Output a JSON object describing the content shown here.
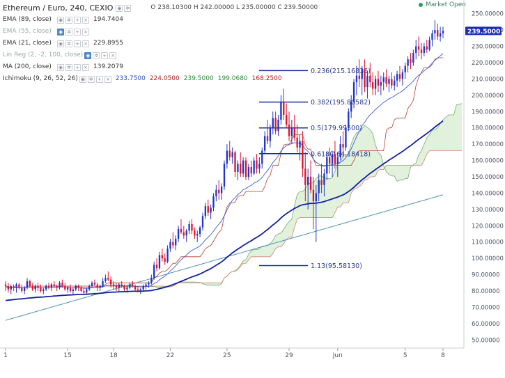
{
  "header": {
    "symbol_title": "Ethereum / Euro, 240, CEXIO",
    "ohlc": "O 238.10300  H 242.00000  L 235.00000  C 239.50000",
    "market_status": "Market Open"
  },
  "indicators": [
    {
      "label": "EMA (89, close)",
      "value": "194.7404",
      "muted": false
    },
    {
      "label": "EMA (55, close)",
      "value": "",
      "muted": true
    },
    {
      "label": "EMA (21, close)",
      "value": "229.8955",
      "muted": false
    },
    {
      "label": "Lin Reg (2, -2, 100, close)",
      "value": "",
      "muted": true
    },
    {
      "label": "MA (200, close)",
      "value": "139.2079",
      "muted": false
    }
  ],
  "ichimoku": {
    "label": "Ichimoku (9, 26, 52, 26)",
    "values": [
      {
        "text": "233.7500",
        "color": "#2b4fc4"
      },
      {
        "text": "224.0500",
        "color": "#b22222"
      },
      {
        "text": "239.5000",
        "color": "#2e8b3d"
      },
      {
        "text": "199.0680",
        "color": "#2e8b3d"
      },
      {
        "text": "168.2500",
        "color": "#b22222"
      }
    ]
  },
  "colors": {
    "up": "#1f35c8",
    "down": "#e0112b",
    "ema89": "#1020a0",
    "ema21": "#3a5ad8",
    "ma200": "#4a90b8",
    "tenkan": "#4660e0",
    "kijun": "#c0392b",
    "cloud_fill": "#dff0d8",
    "span_a": "#6fae6f",
    "span_b": "#d98070",
    "fib": "#1a2f9e",
    "price_tag": "#1a2fb4"
  },
  "price_tag": "239.5000",
  "chart_data": {
    "type": "candlestick",
    "title": "Ethereum / Euro, 240, CEXIO",
    "ylim": [
      45,
      255
    ],
    "y_ticks": [
      "250.00000",
      "240.00000",
      "230.00000",
      "220.00000",
      "210.00000",
      "200.00000",
      "190.00000",
      "180.00000",
      "170.00000",
      "160.00000",
      "150.00000",
      "140.00000",
      "130.00000",
      "120.00000",
      "110.00000",
      "100.00000",
      "90.00000",
      "80.00000",
      "70.00000",
      "60.00000",
      "50.00000"
    ],
    "x_ticks": [
      "1",
      "15",
      "18",
      "22",
      "25",
      "29",
      "Jun",
      "5",
      "8"
    ],
    "candles": [
      [
        84,
        86,
        80,
        83
      ],
      [
        83,
        85,
        79,
        81
      ],
      [
        81,
        84,
        78,
        83
      ],
      [
        83,
        84,
        80,
        82
      ],
      [
        82,
        85,
        79,
        84
      ],
      [
        84,
        85,
        81,
        82
      ],
      [
        82,
        84,
        79,
        80
      ],
      [
        80,
        83,
        78,
        82
      ],
      [
        82,
        88,
        81,
        86
      ],
      [
        86,
        87,
        82,
        83
      ],
      [
        83,
        85,
        80,
        81
      ],
      [
        81,
        84,
        79,
        83
      ],
      [
        83,
        85,
        80,
        82
      ],
      [
        82,
        84,
        79,
        80
      ],
      [
        80,
        82,
        78,
        81
      ],
      [
        81,
        84,
        80,
        83
      ],
      [
        83,
        85,
        81,
        82
      ],
      [
        82,
        85,
        80,
        84
      ],
      [
        84,
        86,
        82,
        83
      ],
      [
        83,
        84,
        80,
        82
      ],
      [
        82,
        86,
        81,
        85
      ],
      [
        85,
        87,
        82,
        83
      ],
      [
        83,
        85,
        80,
        81
      ],
      [
        81,
        83,
        79,
        82
      ],
      [
        82,
        84,
        79,
        80
      ],
      [
        80,
        82,
        78,
        81
      ],
      [
        81,
        84,
        80,
        83
      ],
      [
        83,
        84,
        80,
        82
      ],
      [
        82,
        83,
        79,
        80
      ],
      [
        80,
        82,
        78,
        79
      ],
      [
        79,
        82,
        78,
        81
      ],
      [
        81,
        84,
        80,
        83
      ],
      [
        83,
        86,
        82,
        85
      ],
      [
        85,
        87,
        83,
        84
      ],
      [
        84,
        85,
        80,
        82
      ],
      [
        82,
        84,
        80,
        83
      ],
      [
        83,
        88,
        82,
        86
      ],
      [
        86,
        90,
        85,
        88
      ],
      [
        88,
        92,
        86,
        87
      ],
      [
        87,
        89,
        82,
        84
      ],
      [
        84,
        86,
        81,
        83
      ],
      [
        83,
        85,
        80,
        82
      ],
      [
        82,
        85,
        80,
        84
      ],
      [
        84,
        86,
        82,
        83
      ],
      [
        83,
        84,
        80,
        81
      ],
      [
        81,
        83,
        79,
        82
      ],
      [
        82,
        85,
        81,
        84
      ],
      [
        84,
        86,
        82,
        83
      ],
      [
        83,
        84,
        80,
        81
      ],
      [
        81,
        83,
        79,
        80
      ],
      [
        80,
        82,
        78,
        81
      ],
      [
        81,
        84,
        80,
        83
      ],
      [
        83,
        85,
        81,
        84
      ],
      [
        84,
        86,
        82,
        85
      ],
      [
        85,
        90,
        84,
        88
      ],
      [
        88,
        98,
        87,
        96
      ],
      [
        96,
        100,
        92,
        94
      ],
      [
        94,
        104,
        93,
        102
      ],
      [
        102,
        106,
        98,
        100
      ],
      [
        100,
        103,
        96,
        98
      ],
      [
        98,
        108,
        97,
        106
      ],
      [
        106,
        112,
        104,
        110
      ],
      [
        110,
        116,
        106,
        108
      ],
      [
        108,
        114,
        105,
        112
      ],
      [
        112,
        120,
        110,
        118
      ],
      [
        118,
        124,
        115,
        116
      ],
      [
        116,
        120,
        112,
        114
      ],
      [
        114,
        118,
        110,
        117
      ],
      [
        117,
        123,
        115,
        121
      ],
      [
        121,
        124,
        115,
        117
      ],
      [
        117,
        119,
        112,
        114
      ],
      [
        114,
        117,
        110,
        115
      ],
      [
        115,
        120,
        113,
        119
      ],
      [
        119,
        128,
        117,
        126
      ],
      [
        126,
        134,
        124,
        132
      ],
      [
        132,
        136,
        126,
        128
      ],
      [
        128,
        133,
        124,
        131
      ],
      [
        131,
        140,
        129,
        138
      ],
      [
        138,
        145,
        135,
        142
      ],
      [
        142,
        148,
        136,
        140
      ],
      [
        140,
        146,
        136,
        144
      ],
      [
        144,
        160,
        142,
        158
      ],
      [
        158,
        170,
        155,
        166
      ],
      [
        166,
        172,
        160,
        162
      ],
      [
        162,
        168,
        158,
        165
      ],
      [
        165,
        166,
        150,
        153
      ],
      [
        153,
        160,
        148,
        158
      ],
      [
        158,
        165,
        150,
        152
      ],
      [
        152,
        162,
        150,
        160
      ],
      [
        160,
        162,
        148,
        150
      ],
      [
        150,
        158,
        148,
        156
      ],
      [
        156,
        160,
        150,
        152
      ],
      [
        152,
        162,
        151,
        160
      ],
      [
        160,
        164,
        152,
        155
      ],
      [
        155,
        162,
        152,
        158
      ],
      [
        158,
        168,
        155,
        166
      ],
      [
        166,
        178,
        164,
        175
      ],
      [
        175,
        185,
        170,
        172
      ],
      [
        172,
        182,
        168,
        180
      ],
      [
        180,
        190,
        176,
        186
      ],
      [
        186,
        190,
        176,
        178
      ],
      [
        178,
        188,
        175,
        185
      ],
      [
        185,
        200,
        182,
        196
      ],
      [
        196,
        204,
        185,
        188
      ],
      [
        188,
        195,
        180,
        182
      ],
      [
        182,
        190,
        172,
        175
      ],
      [
        175,
        185,
        170,
        180
      ],
      [
        180,
        188,
        172,
        174
      ],
      [
        174,
        182,
        165,
        168
      ],
      [
        168,
        176,
        160,
        172
      ],
      [
        172,
        178,
        150,
        155
      ],
      [
        155,
        165,
        135,
        145
      ],
      [
        145,
        155,
        130,
        150
      ],
      [
        150,
        160,
        140,
        142
      ],
      [
        142,
        150,
        118,
        135
      ],
      [
        135,
        145,
        110,
        140
      ],
      [
        140,
        152,
        135,
        148
      ],
      [
        148,
        158,
        140,
        145
      ],
      [
        145,
        155,
        138,
        152
      ],
      [
        152,
        165,
        148,
        162
      ],
      [
        162,
        168,
        152,
        158
      ],
      [
        158,
        166,
        150,
        164
      ],
      [
        164,
        172,
        155,
        158
      ],
      [
        158,
        165,
        150,
        162
      ],
      [
        162,
        175,
        160,
        170
      ],
      [
        170,
        178,
        162,
        168
      ],
      [
        168,
        182,
        166,
        180
      ],
      [
        180,
        192,
        178,
        190
      ],
      [
        190,
        200,
        186,
        196
      ],
      [
        196,
        210,
        192,
        208
      ],
      [
        208,
        218,
        200,
        212
      ],
      [
        212,
        222,
        205,
        210
      ],
      [
        210,
        218,
        200,
        216
      ],
      [
        216,
        222,
        202,
        205
      ],
      [
        205,
        215,
        198,
        212
      ],
      [
        212,
        220,
        205,
        208
      ],
      [
        208,
        214,
        200,
        204
      ],
      [
        204,
        212,
        200,
        210
      ],
      [
        210,
        215,
        202,
        206
      ],
      [
        206,
        212,
        200,
        208
      ],
      [
        208,
        214,
        203,
        211
      ],
      [
        211,
        216,
        205,
        207
      ],
      [
        207,
        212,
        202,
        210
      ],
      [
        210,
        214,
        204,
        206
      ],
      [
        206,
        212,
        203,
        209
      ],
      [
        209,
        215,
        205,
        213
      ],
      [
        213,
        218,
        208,
        210
      ],
      [
        210,
        216,
        206,
        214
      ],
      [
        214,
        220,
        210,
        218
      ],
      [
        218,
        224,
        214,
        222
      ],
      [
        222,
        226,
        216,
        220
      ],
      [
        220,
        228,
        218,
        226
      ],
      [
        226,
        234,
        222,
        230
      ],
      [
        230,
        236,
        224,
        228
      ],
      [
        228,
        232,
        222,
        226
      ],
      [
        226,
        232,
        224,
        230
      ],
      [
        230,
        234,
        226,
        228
      ],
      [
        228,
        236,
        227,
        234
      ],
      [
        234,
        240,
        230,
        238
      ],
      [
        238,
        246,
        234,
        240
      ],
      [
        240,
        244,
        234,
        236
      ],
      [
        236,
        242,
        233,
        238
      ],
      [
        238,
        242,
        235,
        239.5
      ]
    ],
    "series": [
      {
        "name": "EMA (89, close)",
        "values": "computed"
      },
      {
        "name": "EMA (21, close)",
        "values": "computed"
      },
      {
        "name": "MA (200, close)",
        "values": "computed"
      }
    ],
    "fibonacci": [
      {
        "label": "0.236(215.16836)",
        "value": 215.16836
      },
      {
        "label": "0.382(195.80582)",
        "value": 195.80582
      },
      {
        "label": "0.5(179.99500)",
        "value": 179.995
      },
      {
        "label": "0.618(164.18418)",
        "value": 164.18418
      },
      {
        "label": "1.13(95.58130)",
        "value": 95.5813
      }
    ],
    "grid": false
  }
}
